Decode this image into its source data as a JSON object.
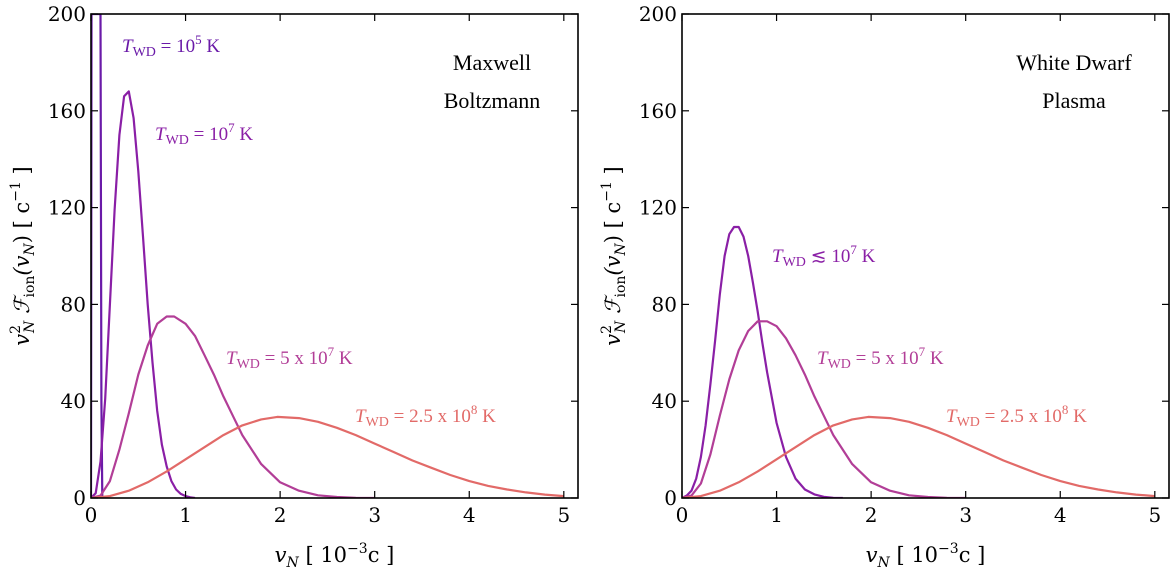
{
  "chart_data": [
    {
      "type": "line",
      "title": "",
      "annotation": [
        "Maxwell",
        "Boltzmann"
      ],
      "xlabel": {
        "main": "v",
        "sub": "N",
        "mid": " [ 10",
        "sup": "−3",
        "tail": "c ]"
      },
      "ylabel": {
        "main": "v",
        "sup": "2",
        "sub": "N",
        "f": " ℱ",
        "fsub": "ion",
        "arg": "(v",
        "argsub": "N",
        "close": ") [ c",
        "csup": "−1",
        "end": " ]"
      },
      "xlim": [
        0,
        5.15
      ],
      "ylim": [
        0,
        200
      ],
      "xticks": [
        0,
        1,
        2,
        3,
        4,
        5
      ],
      "yticks": [
        0,
        40,
        80,
        120,
        160,
        200
      ],
      "xtick_labels": [
        "0",
        "1",
        "2",
        "3",
        "4",
        "5"
      ],
      "ytick_labels": [
        "0",
        "40",
        "80",
        "120",
        "160",
        "200"
      ],
      "grid": false,
      "series": [
        {
          "color": "#6a1aa8",
          "label": {
            "T": "T",
            "sub": "WD",
            "pre": " = 10",
            "sup": "5",
            "post": " K"
          },
          "x": [
            0,
            0.005,
            0.01,
            0.015,
            0.02,
            0.03,
            0.04,
            0.05,
            0.06,
            0.07,
            0.08,
            0.09,
            0.1,
            0.11,
            0.12
          ],
          "y": [
            0,
            200,
            200,
            200,
            200,
            200,
            200,
            200,
            200,
            200,
            200,
            200,
            200,
            40,
            0
          ]
        },
        {
          "color": "#8a1fa6",
          "label": {
            "T": "T",
            "sub": "WD",
            "pre": " = 10",
            "sup": "7",
            "post": " K"
          },
          "x": [
            0,
            0.05,
            0.1,
            0.15,
            0.2,
            0.25,
            0.3,
            0.35,
            0.4,
            0.45,
            0.5,
            0.55,
            0.6,
            0.65,
            0.7,
            0.75,
            0.8,
            0.85,
            0.9,
            0.95,
            1.0,
            1.05,
            1.1
          ],
          "y": [
            0,
            2,
            15,
            41,
            80,
            119,
            150,
            166,
            168,
            157,
            135,
            108,
            80,
            56,
            36,
            22,
            13,
            7,
            3.5,
            1.7,
            0.8,
            0.3,
            0
          ]
        },
        {
          "color": "#b23e97",
          "label": {
            "T": "T",
            "sub": "WD",
            "pre": " = 5 x 10",
            "sup": "7",
            "post": " K"
          },
          "x": [
            0,
            0.1,
            0.2,
            0.3,
            0.4,
            0.5,
            0.6,
            0.7,
            0.8,
            0.88,
            1.0,
            1.1,
            1.2,
            1.3,
            1.4,
            1.5,
            1.6,
            1.8,
            2.0,
            2.2,
            2.4,
            2.6,
            2.8,
            3.0
          ],
          "y": [
            0,
            1,
            7,
            20,
            35,
            51,
            63,
            72,
            75,
            75,
            72,
            67,
            59,
            51,
            42,
            34,
            26,
            14,
            6.5,
            3,
            1.1,
            0.4,
            0.1,
            0
          ]
        },
        {
          "color": "#e26a68",
          "label": {
            "T": "T",
            "sub": "WD",
            "pre": " = 2.5 x 10",
            "sup": "8",
            "post": " K"
          },
          "x": [
            0,
            0.2,
            0.4,
            0.6,
            0.8,
            1.0,
            1.2,
            1.4,
            1.6,
            1.8,
            1.97,
            2.2,
            2.4,
            2.6,
            2.8,
            3.0,
            3.2,
            3.4,
            3.6,
            3.8,
            4.0,
            4.2,
            4.4,
            4.6,
            4.8,
            5.0
          ],
          "y": [
            0,
            0.8,
            3,
            6.5,
            11,
            16,
            21,
            26,
            30,
            32.5,
            33.5,
            33,
            31.5,
            29,
            26,
            22.5,
            19,
            15.5,
            12.5,
            9.5,
            7,
            5,
            3.5,
            2.3,
            1.4,
            0.8
          ]
        }
      ]
    },
    {
      "type": "line",
      "title": "",
      "annotation": [
        "White Dwarf",
        "Plasma"
      ],
      "xlabel": {
        "main": "v",
        "sub": "N",
        "mid": " [ 10",
        "sup": "−3",
        "tail": "c ]"
      },
      "ylabel": {
        "main": "v",
        "sup": "2",
        "sub": "N",
        "f": " ℱ",
        "fsub": "ion",
        "arg": "(v",
        "argsub": "N",
        "close": ") [ c",
        "csup": "−1",
        "end": " ]"
      },
      "xlim": [
        0,
        5.15
      ],
      "ylim": [
        0,
        200
      ],
      "xticks": [
        0,
        1,
        2,
        3,
        4,
        5
      ],
      "yticks": [
        0,
        40,
        80,
        120,
        160,
        200
      ],
      "xtick_labels": [
        "0",
        "1",
        "2",
        "3",
        "4",
        "5"
      ],
      "ytick_labels": [
        "0",
        "40",
        "80",
        "120",
        "160",
        "200"
      ],
      "grid": false,
      "series": [
        {
          "color": "#8a1fa6",
          "label": {
            "T": "T",
            "sub": "WD",
            "pre": " ≲ 10",
            "sup": "7",
            "post": " K"
          },
          "x": [
            0,
            0.05,
            0.1,
            0.15,
            0.2,
            0.25,
            0.3,
            0.35,
            0.4,
            0.45,
            0.5,
            0.55,
            0.6,
            0.65,
            0.7,
            0.75,
            0.8,
            0.85,
            0.9,
            1.0,
            1.1,
            1.2,
            1.3,
            1.4,
            1.5,
            1.6,
            1.7
          ],
          "y": [
            0,
            1,
            3,
            8,
            17,
            30,
            47,
            65,
            84,
            100,
            109,
            112,
            112,
            108,
            100,
            89,
            77,
            64,
            52,
            31,
            17,
            8,
            3.5,
            1.5,
            0.5,
            0.1,
            0
          ]
        },
        {
          "color": "#b23e97",
          "label": {
            "T": "T",
            "sub": "WD",
            "pre": " = 5 x 10",
            "sup": "7",
            "post": " K"
          },
          "x": [
            0,
            0.1,
            0.2,
            0.3,
            0.4,
            0.5,
            0.6,
            0.7,
            0.8,
            0.9,
            1.0,
            1.1,
            1.2,
            1.3,
            1.4,
            1.5,
            1.6,
            1.8,
            2.0,
            2.2,
            2.4,
            2.6,
            2.8,
            3.0
          ],
          "y": [
            0,
            1,
            6,
            18,
            34,
            49,
            61,
            69,
            73,
            73,
            71,
            66,
            59,
            51,
            42,
            34,
            26,
            14,
            6.5,
            3,
            1.1,
            0.4,
            0.1,
            0
          ]
        },
        {
          "color": "#e26a68",
          "label": {
            "T": "T",
            "sub": "WD",
            "pre": " = 2.5 x 10",
            "sup": "8",
            "post": " K"
          },
          "x": [
            0,
            0.2,
            0.4,
            0.6,
            0.8,
            1.0,
            1.2,
            1.4,
            1.6,
            1.8,
            1.97,
            2.2,
            2.4,
            2.6,
            2.8,
            3.0,
            3.2,
            3.4,
            3.6,
            3.8,
            4.0,
            4.2,
            4.4,
            4.6,
            4.8,
            5.0
          ],
          "y": [
            0,
            0.8,
            3,
            6.5,
            11,
            16,
            21,
            26,
            30,
            32.5,
            33.5,
            33,
            31.5,
            29,
            26,
            22.5,
            19,
            15.5,
            12.5,
            9.5,
            7,
            5,
            3.5,
            2.3,
            1.4,
            0.8
          ]
        }
      ]
    }
  ]
}
